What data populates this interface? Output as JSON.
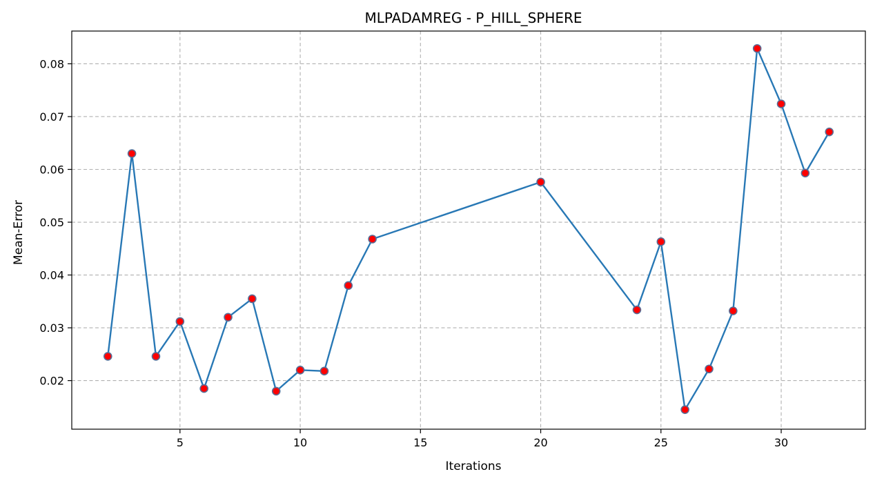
{
  "chart_data": {
    "type": "line",
    "title": "MLPADAMREG - P_HILL_SPHERE",
    "xlabel": "Iterations",
    "ylabel": "Mean-Error",
    "xlim": [
      0.5,
      33.5
    ],
    "ylim": [
      0.0108,
      0.0862
    ],
    "xticks": [
      5,
      10,
      15,
      20,
      25,
      30
    ],
    "yticks": [
      0.02,
      0.03,
      0.04,
      0.05,
      0.06,
      0.07,
      0.08
    ],
    "ytick_labels": [
      "0.02",
      "0.03",
      "0.04",
      "0.05",
      "0.06",
      "0.07",
      "0.08"
    ],
    "grid": true,
    "line_color": "#2878b5",
    "marker_face_color": "#ff0000",
    "marker_edge_color": "#5a6e96",
    "series": [
      {
        "x": [
          2,
          3,
          4,
          5,
          6,
          7,
          8,
          9,
          10,
          11,
          12,
          13,
          20,
          24,
          25,
          26,
          27,
          28,
          29,
          30,
          31,
          32
        ],
        "y": [
          0.0246,
          0.063,
          0.0246,
          0.0312,
          0.0185,
          0.032,
          0.0355,
          0.018,
          0.022,
          0.0218,
          0.038,
          0.0468,
          0.0576,
          0.0334,
          0.0463,
          0.0145,
          0.0222,
          0.0332,
          0.0829,
          0.0724,
          0.0593,
          0.0671
        ]
      }
    ]
  }
}
